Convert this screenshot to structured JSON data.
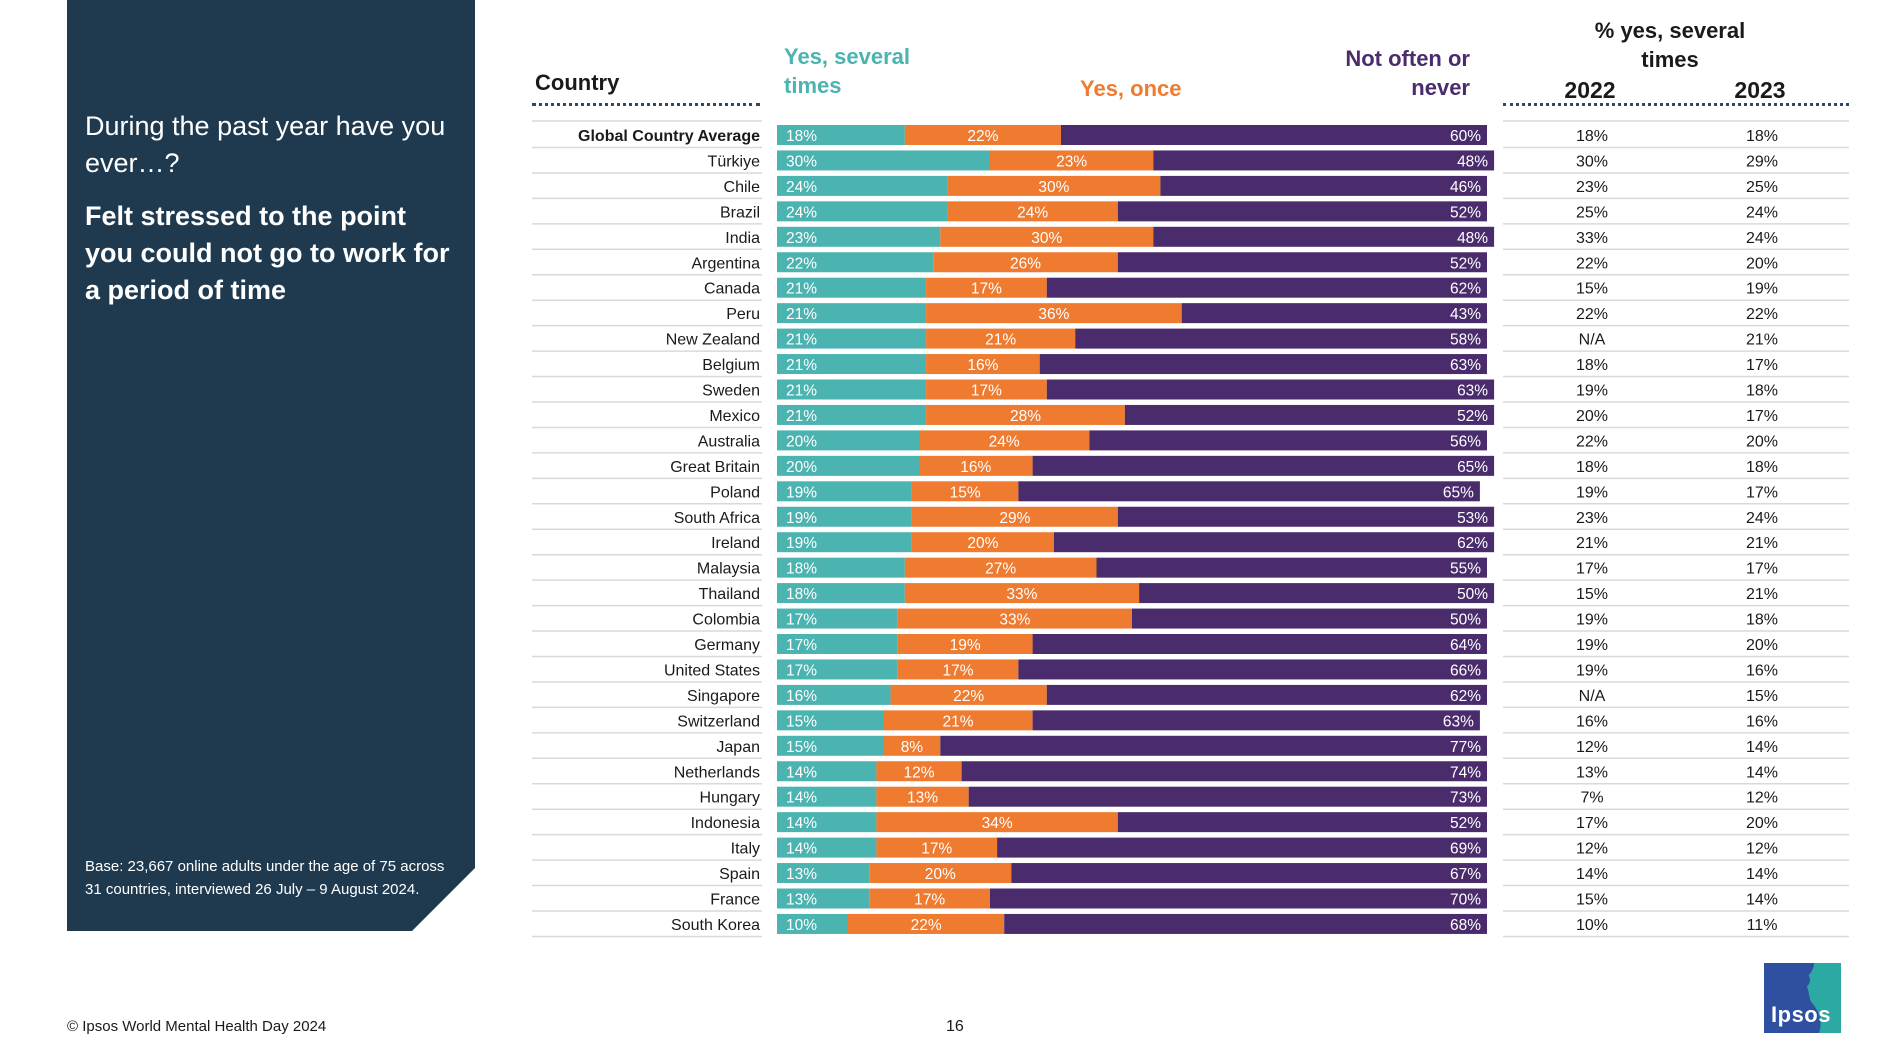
{
  "panel": {
    "intro": "During the past year have you ever…?",
    "question": "Felt stressed to the point you could not go to work for a period of time",
    "base": "Base: 23,667 online adults under the age of 75 across 31 countries, interviewed 26 July – 9 August 2024."
  },
  "headers": {
    "country": "Country",
    "several": "Yes, several times",
    "once": "Yes, once",
    "never": "Not often or never",
    "pct_several": "% yes, several times",
    "year_1": "2022",
    "year_2": "2023"
  },
  "colors": {
    "panel": "#1f3a4f",
    "several": "#4bb3b0",
    "once": "#ee7b30",
    "never": "#4a2c6d"
  },
  "chart_data": {
    "type": "bar",
    "orientation": "horizontal",
    "stacked": true,
    "normalized_to": 100,
    "categories": [
      "Global Country Average",
      "Türkiye",
      "Chile",
      "Brazil",
      "India",
      "Argentina",
      "Canada",
      "Peru",
      "New Zealand",
      "Belgium",
      "Sweden",
      "Mexico",
      "Australia",
      "Great Britain",
      "Poland",
      "South Africa",
      "Ireland",
      "Malaysia",
      "Thailand",
      "Colombia",
      "Germany",
      "United States",
      "Singapore",
      "Switzerland",
      "Japan",
      "Netherlands",
      "Hungary",
      "Indonesia",
      "Italy",
      "Spain",
      "France",
      "South Korea"
    ],
    "series": [
      {
        "name": "Yes, several times",
        "color": "#4bb3b0",
        "values": [
          18,
          30,
          24,
          24,
          23,
          22,
          21,
          21,
          21,
          21,
          21,
          21,
          20,
          20,
          19,
          19,
          19,
          18,
          18,
          17,
          17,
          17,
          16,
          15,
          15,
          14,
          14,
          14,
          14,
          13,
          13,
          10
        ]
      },
      {
        "name": "Yes, once",
        "color": "#ee7b30",
        "values": [
          22,
          23,
          30,
          24,
          30,
          26,
          17,
          36,
          21,
          16,
          17,
          28,
          24,
          16,
          15,
          29,
          20,
          27,
          33,
          33,
          19,
          17,
          22,
          21,
          8,
          12,
          13,
          34,
          17,
          20,
          17,
          22
        ]
      },
      {
        "name": "Not often or never",
        "color": "#4a2c6d",
        "values": [
          60,
          48,
          46,
          52,
          48,
          52,
          62,
          43,
          58,
          63,
          63,
          52,
          56,
          65,
          65,
          53,
          62,
          55,
          50,
          50,
          64,
          66,
          62,
          63,
          77,
          74,
          73,
          52,
          69,
          67,
          70,
          68
        ]
      }
    ],
    "table": {
      "title": "% yes, several times",
      "columns": [
        "2022",
        "2023"
      ],
      "rows": [
        [
          "18%",
          "18%"
        ],
        [
          "30%",
          "29%"
        ],
        [
          "23%",
          "25%"
        ],
        [
          "25%",
          "24%"
        ],
        [
          "33%",
          "24%"
        ],
        [
          "22%",
          "20%"
        ],
        [
          "15%",
          "19%"
        ],
        [
          "22%",
          "22%"
        ],
        [
          "N/A",
          "21%"
        ],
        [
          "18%",
          "17%"
        ],
        [
          "19%",
          "18%"
        ],
        [
          "20%",
          "17%"
        ],
        [
          "22%",
          "20%"
        ],
        [
          "18%",
          "18%"
        ],
        [
          "19%",
          "17%"
        ],
        [
          "23%",
          "24%"
        ],
        [
          "21%",
          "21%"
        ],
        [
          "17%",
          "17%"
        ],
        [
          "15%",
          "21%"
        ],
        [
          "19%",
          "18%"
        ],
        [
          "19%",
          "20%"
        ],
        [
          "19%",
          "16%"
        ],
        [
          "N/A",
          "15%"
        ],
        [
          "16%",
          "16%"
        ],
        [
          "12%",
          "14%"
        ],
        [
          "13%",
          "14%"
        ],
        [
          "7%",
          "12%"
        ],
        [
          "17%",
          "20%"
        ],
        [
          "12%",
          "12%"
        ],
        [
          "14%",
          "14%"
        ],
        [
          "15%",
          "14%"
        ],
        [
          "10%",
          "11%"
        ]
      ]
    }
  },
  "footer": {
    "copyright": "© Ipsos World Mental Health Day 2024",
    "page": "16",
    "logo": "Ipsos"
  }
}
